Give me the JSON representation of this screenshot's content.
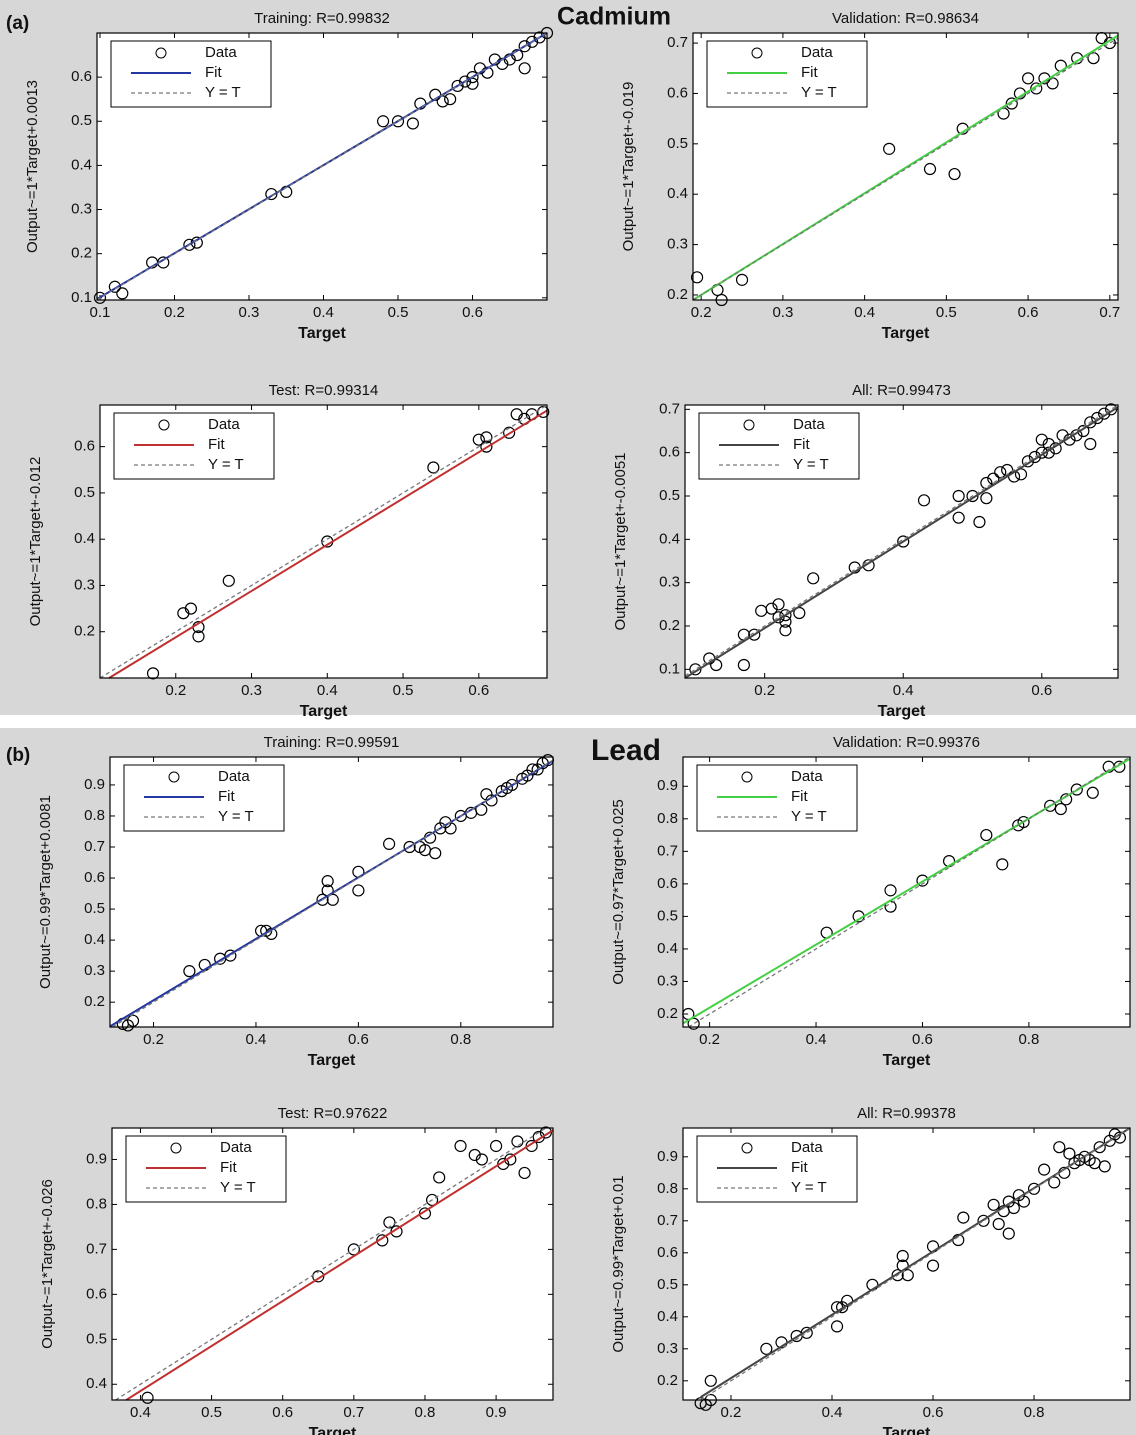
{
  "panels": [
    {
      "label": "(a)",
      "title": "Cadmium"
    },
    {
      "label": "(b)",
      "title": "Lead"
    }
  ],
  "chart_data": [
    {
      "type": "scatter",
      "title": "Training: R=0.99832",
      "x_label": "Target",
      "y_label": "Output~=1*Target+0.0013",
      "xlim": [
        0.096,
        0.7
      ],
      "ylim": [
        0.095,
        0.7
      ],
      "xticks": [
        0.1,
        0.2,
        0.3,
        0.4,
        0.5,
        0.6
      ],
      "yticks": [
        0.1,
        0.2,
        0.3,
        0.4,
        0.5,
        0.6
      ],
      "series": [
        {
          "name": "Data",
          "color": "#000000",
          "marker": "o",
          "linestyle": "none",
          "x": [
            0.1,
            0.12,
            0.13,
            0.17,
            0.185,
            0.22,
            0.23,
            0.33,
            0.35,
            0.48,
            0.5,
            0.52,
            0.53,
            0.55,
            0.56,
            0.57,
            0.58,
            0.59,
            0.6,
            0.6,
            0.61,
            0.62,
            0.63,
            0.64,
            0.65,
            0.66,
            0.67,
            0.67,
            0.68,
            0.69,
            0.7
          ],
          "values": [
            0.1,
            0.125,
            0.11,
            0.18,
            0.18,
            0.22,
            0.225,
            0.335,
            0.34,
            0.5,
            0.5,
            0.495,
            0.54,
            0.56,
            0.545,
            0.55,
            0.58,
            0.59,
            0.585,
            0.6,
            0.62,
            0.61,
            0.64,
            0.63,
            0.64,
            0.65,
            0.62,
            0.67,
            0.68,
            0.69,
            0.7
          ]
        },
        {
          "name": "Fit",
          "color": "#2436a0",
          "marker": "none",
          "linestyle": "solid",
          "x": [
            0.096,
            0.7
          ],
          "values": [
            0.097,
            0.7
          ]
        },
        {
          "name": "Y = T",
          "color": "#777777",
          "marker": "none",
          "linestyle": "dashed",
          "x": [
            0.096,
            0.7
          ],
          "values": [
            0.096,
            0.7
          ]
        }
      ]
    },
    {
      "type": "scatter",
      "title": "Validation: R=0.98634",
      "x_label": "Target",
      "y_label": "Output~=1*Target+-0.019",
      "xlim": [
        0.19,
        0.71
      ],
      "ylim": [
        0.19,
        0.72
      ],
      "xticks": [
        0.2,
        0.3,
        0.4,
        0.5,
        0.6,
        0.7
      ],
      "yticks": [
        0.2,
        0.3,
        0.4,
        0.5,
        0.6,
        0.7
      ],
      "series": [
        {
          "name": "Data",
          "color": "#000000",
          "marker": "o",
          "linestyle": "none",
          "x": [
            0.195,
            0.22,
            0.225,
            0.25,
            0.43,
            0.48,
            0.51,
            0.52,
            0.57,
            0.58,
            0.59,
            0.6,
            0.61,
            0.62,
            0.63,
            0.64,
            0.66,
            0.68,
            0.69,
            0.7
          ],
          "values": [
            0.235,
            0.21,
            0.19,
            0.23,
            0.49,
            0.45,
            0.44,
            0.53,
            0.56,
            0.58,
            0.6,
            0.63,
            0.61,
            0.63,
            0.62,
            0.655,
            0.67,
            0.67,
            0.71,
            0.7
          ]
        },
        {
          "name": "Fit",
          "color": "#44d044",
          "marker": "none",
          "linestyle": "solid",
          "x": [
            0.19,
            0.71
          ],
          "values": [
            0.19,
            0.715
          ]
        },
        {
          "name": "Y = T",
          "color": "#777777",
          "marker": "none",
          "linestyle": "dashed",
          "x": [
            0.19,
            0.71
          ],
          "values": [
            0.19,
            0.71
          ]
        }
      ]
    },
    {
      "type": "scatter",
      "title": "Test: R=0.99314",
      "x_label": "Target",
      "y_label": "Output~=1*Target+-0.012",
      "xlim": [
        0.1,
        0.69
      ],
      "ylim": [
        0.1,
        0.69
      ],
      "xticks": [
        0.2,
        0.3,
        0.4,
        0.5,
        0.6
      ],
      "yticks": [
        0.2,
        0.3,
        0.4,
        0.5,
        0.6
      ],
      "series": [
        {
          "name": "Data",
          "color": "#000000",
          "marker": "o",
          "linestyle": "none",
          "x": [
            0.17,
            0.21,
            0.22,
            0.23,
            0.23,
            0.27,
            0.4,
            0.54,
            0.6,
            0.61,
            0.61,
            0.64,
            0.65,
            0.66,
            0.67,
            0.685
          ],
          "values": [
            0.11,
            0.24,
            0.25,
            0.21,
            0.19,
            0.31,
            0.395,
            0.555,
            0.615,
            0.6,
            0.62,
            0.63,
            0.67,
            0.66,
            0.67,
            0.675
          ]
        },
        {
          "name": "Fit",
          "color": "#c03030",
          "marker": "none",
          "linestyle": "solid",
          "x": [
            0.112,
            0.69
          ],
          "values": [
            0.1,
            0.678
          ]
        },
        {
          "name": "Y = T",
          "color": "#777777",
          "marker": "none",
          "linestyle": "dashed",
          "x": [
            0.1,
            0.69
          ],
          "values": [
            0.1,
            0.69
          ]
        }
      ]
    },
    {
      "type": "scatter",
      "title": "All: R=0.99473",
      "x_label": "Target",
      "y_label": "Output~=1*Target+-0.0051",
      "xlim": [
        0.085,
        0.71
      ],
      "ylim": [
        0.08,
        0.71
      ],
      "xticks": [
        0.2,
        0.4,
        0.6
      ],
      "yticks": [
        0.1,
        0.2,
        0.3,
        0.4,
        0.5,
        0.6,
        0.7
      ],
      "series": [
        {
          "name": "Data",
          "color": "#000000",
          "marker": "o",
          "linestyle": "none",
          "x": [
            0.1,
            0.12,
            0.13,
            0.17,
            0.17,
            0.185,
            0.195,
            0.21,
            0.22,
            0.22,
            0.23,
            0.23,
            0.23,
            0.25,
            0.27,
            0.33,
            0.35,
            0.4,
            0.43,
            0.48,
            0.48,
            0.5,
            0.51,
            0.52,
            0.52,
            0.53,
            0.54,
            0.55,
            0.56,
            0.57,
            0.58,
            0.59,
            0.6,
            0.6,
            0.61,
            0.61,
            0.62,
            0.63,
            0.64,
            0.65,
            0.66,
            0.67,
            0.67,
            0.68,
            0.69,
            0.7
          ],
          "values": [
            0.1,
            0.125,
            0.11,
            0.18,
            0.11,
            0.18,
            0.235,
            0.24,
            0.22,
            0.25,
            0.21,
            0.19,
            0.225,
            0.23,
            0.31,
            0.335,
            0.34,
            0.395,
            0.49,
            0.45,
            0.5,
            0.5,
            0.44,
            0.495,
            0.53,
            0.54,
            0.555,
            0.56,
            0.545,
            0.55,
            0.58,
            0.59,
            0.6,
            0.63,
            0.62,
            0.6,
            0.61,
            0.64,
            0.63,
            0.64,
            0.65,
            0.62,
            0.67,
            0.68,
            0.69,
            0.7
          ]
        },
        {
          "name": "Fit",
          "color": "#444444",
          "marker": "none",
          "linestyle": "solid",
          "x": [
            0.085,
            0.71
          ],
          "values": [
            0.08,
            0.705
          ]
        },
        {
          "name": "Y = T",
          "color": "#777777",
          "marker": "none",
          "linestyle": "dashed",
          "x": [
            0.085,
            0.71
          ],
          "values": [
            0.085,
            0.71
          ]
        }
      ]
    },
    {
      "type": "scatter",
      "title": "Training: R=0.99591",
      "x_label": "Target",
      "y_label": "Output~=0.99*Target+0.0081",
      "xlim": [
        0.115,
        0.98
      ],
      "ylim": [
        0.12,
        0.99
      ],
      "xticks": [
        0.2,
        0.4,
        0.6,
        0.8
      ],
      "yticks": [
        0.2,
        0.3,
        0.4,
        0.5,
        0.6,
        0.7,
        0.8,
        0.9
      ],
      "series": [
        {
          "name": "Data",
          "color": "#000000",
          "marker": "o",
          "linestyle": "none",
          "x": [
            0.14,
            0.15,
            0.16,
            0.27,
            0.3,
            0.33,
            0.35,
            0.41,
            0.42,
            0.43,
            0.53,
            0.54,
            0.54,
            0.55,
            0.6,
            0.6,
            0.66,
            0.7,
            0.72,
            0.73,
            0.75,
            0.74,
            0.76,
            0.77,
            0.78,
            0.8,
            0.82,
            0.84,
            0.85,
            0.86,
            0.88,
            0.89,
            0.9,
            0.92,
            0.93,
            0.94,
            0.95,
            0.96,
            0.97
          ],
          "values": [
            0.13,
            0.125,
            0.14,
            0.3,
            0.32,
            0.34,
            0.35,
            0.43,
            0.43,
            0.42,
            0.53,
            0.59,
            0.56,
            0.53,
            0.62,
            0.56,
            0.71,
            0.7,
            0.7,
            0.69,
            0.68,
            0.73,
            0.76,
            0.78,
            0.76,
            0.8,
            0.81,
            0.82,
            0.87,
            0.85,
            0.88,
            0.89,
            0.9,
            0.92,
            0.93,
            0.95,
            0.95,
            0.97,
            0.98
          ]
        },
        {
          "name": "Fit",
          "color": "#2436a0",
          "marker": "none",
          "linestyle": "solid",
          "x": [
            0.115,
            0.98
          ],
          "values": [
            0.122,
            0.978
          ]
        },
        {
          "name": "Y = T",
          "color": "#777777",
          "marker": "none",
          "linestyle": "dashed",
          "x": [
            0.12,
            0.98
          ],
          "values": [
            0.12,
            0.98
          ]
        }
      ]
    },
    {
      "type": "scatter",
      "title": "Validation: R=0.99376",
      "x_label": "Target",
      "y_label": "Output~=0.97*Target+0.025",
      "xlim": [
        0.15,
        0.99
      ],
      "ylim": [
        0.16,
        0.99
      ],
      "xticks": [
        0.2,
        0.4,
        0.6,
        0.8
      ],
      "yticks": [
        0.2,
        0.3,
        0.4,
        0.5,
        0.6,
        0.7,
        0.8,
        0.9
      ],
      "series": [
        {
          "name": "Data",
          "color": "#000000",
          "marker": "o",
          "linestyle": "none",
          "x": [
            0.16,
            0.17,
            0.42,
            0.48,
            0.54,
            0.54,
            0.6,
            0.65,
            0.72,
            0.75,
            0.78,
            0.79,
            0.84,
            0.86,
            0.87,
            0.89,
            0.92,
            0.95,
            0.97
          ],
          "values": [
            0.2,
            0.17,
            0.45,
            0.5,
            0.53,
            0.58,
            0.61,
            0.67,
            0.75,
            0.66,
            0.78,
            0.79,
            0.84,
            0.83,
            0.86,
            0.89,
            0.88,
            0.96,
            0.96
          ]
        },
        {
          "name": "Fit",
          "color": "#44d044",
          "marker": "none",
          "linestyle": "solid",
          "x": [
            0.15,
            0.99
          ],
          "values": [
            0.171,
            0.985
          ]
        },
        {
          "name": "Y = T",
          "color": "#777777",
          "marker": "none",
          "linestyle": "dashed",
          "x": [
            0.16,
            0.99
          ],
          "values": [
            0.16,
            0.99
          ]
        }
      ]
    },
    {
      "type": "scatter",
      "title": "Test: R=0.97622",
      "x_label": "Target",
      "y_label": "Output~=1*Target+-0.026",
      "xlim": [
        0.36,
        0.98
      ],
      "ylim": [
        0.365,
        0.97
      ],
      "xticks": [
        0.4,
        0.5,
        0.6,
        0.7,
        0.8,
        0.9
      ],
      "yticks": [
        0.4,
        0.5,
        0.6,
        0.7,
        0.8,
        0.9
      ],
      "series": [
        {
          "name": "Data",
          "color": "#000000",
          "marker": "o",
          "linestyle": "none",
          "x": [
            0.41,
            0.65,
            0.7,
            0.74,
            0.75,
            0.76,
            0.8,
            0.81,
            0.82,
            0.85,
            0.87,
            0.88,
            0.9,
            0.91,
            0.92,
            0.93,
            0.94,
            0.95,
            0.96,
            0.97
          ],
          "values": [
            0.37,
            0.64,
            0.7,
            0.72,
            0.76,
            0.74,
            0.78,
            0.81,
            0.86,
            0.93,
            0.91,
            0.9,
            0.93,
            0.89,
            0.9,
            0.94,
            0.87,
            0.93,
            0.95,
            0.96
          ]
        },
        {
          "name": "Fit",
          "color": "#c03030",
          "marker": "none",
          "linestyle": "solid",
          "x": [
            0.38,
            0.98
          ],
          "values": [
            0.365,
            0.965
          ]
        },
        {
          "name": "Y = T",
          "color": "#777777",
          "marker": "none",
          "linestyle": "dashed",
          "x": [
            0.365,
            0.97
          ],
          "values": [
            0.365,
            0.97
          ]
        }
      ]
    },
    {
      "type": "scatter",
      "title": "All: R=0.99378",
      "x_label": "Target",
      "y_label": "Output~=0.99*Target+0.01",
      "xlim": [
        0.105,
        0.99
      ],
      "ylim": [
        0.14,
        0.99
      ],
      "xticks": [
        0.2,
        0.4,
        0.6,
        0.8
      ],
      "yticks": [
        0.2,
        0.3,
        0.4,
        0.5,
        0.6,
        0.7,
        0.8,
        0.9
      ],
      "series": [
        {
          "name": "Data",
          "color": "#000000",
          "marker": "o",
          "linestyle": "none",
          "x": [
            0.14,
            0.15,
            0.16,
            0.16,
            0.27,
            0.3,
            0.33,
            0.35,
            0.41,
            0.41,
            0.42,
            0.43,
            0.48,
            0.53,
            0.54,
            0.54,
            0.55,
            0.6,
            0.6,
            0.65,
            0.66,
            0.7,
            0.72,
            0.73,
            0.75,
            0.75,
            0.74,
            0.76,
            0.77,
            0.78,
            0.8,
            0.82,
            0.84,
            0.85,
            0.86,
            0.87,
            0.88,
            0.89,
            0.9,
            0.91,
            0.92,
            0.93,
            0.94,
            0.95,
            0.96,
            0.97
          ],
          "values": [
            0.13,
            0.125,
            0.14,
            0.2,
            0.3,
            0.32,
            0.34,
            0.35,
            0.37,
            0.43,
            0.43,
            0.45,
            0.5,
            0.53,
            0.59,
            0.56,
            0.53,
            0.62,
            0.56,
            0.64,
            0.71,
            0.7,
            0.75,
            0.69,
            0.66,
            0.76,
            0.73,
            0.74,
            0.78,
            0.76,
            0.8,
            0.86,
            0.82,
            0.93,
            0.85,
            0.91,
            0.88,
            0.89,
            0.9,
            0.89,
            0.88,
            0.93,
            0.87,
            0.95,
            0.97,
            0.96
          ]
        },
        {
          "name": "Fit",
          "color": "#444444",
          "marker": "none",
          "linestyle": "solid",
          "x": [
            0.14,
            0.99
          ],
          "values": [
            0.149,
            0.99
          ]
        },
        {
          "name": "Y = T",
          "color": "#777777",
          "marker": "none",
          "linestyle": "dashed",
          "x": [
            0.14,
            0.99
          ],
          "values": [
            0.14,
            0.99
          ]
        }
      ]
    }
  ]
}
